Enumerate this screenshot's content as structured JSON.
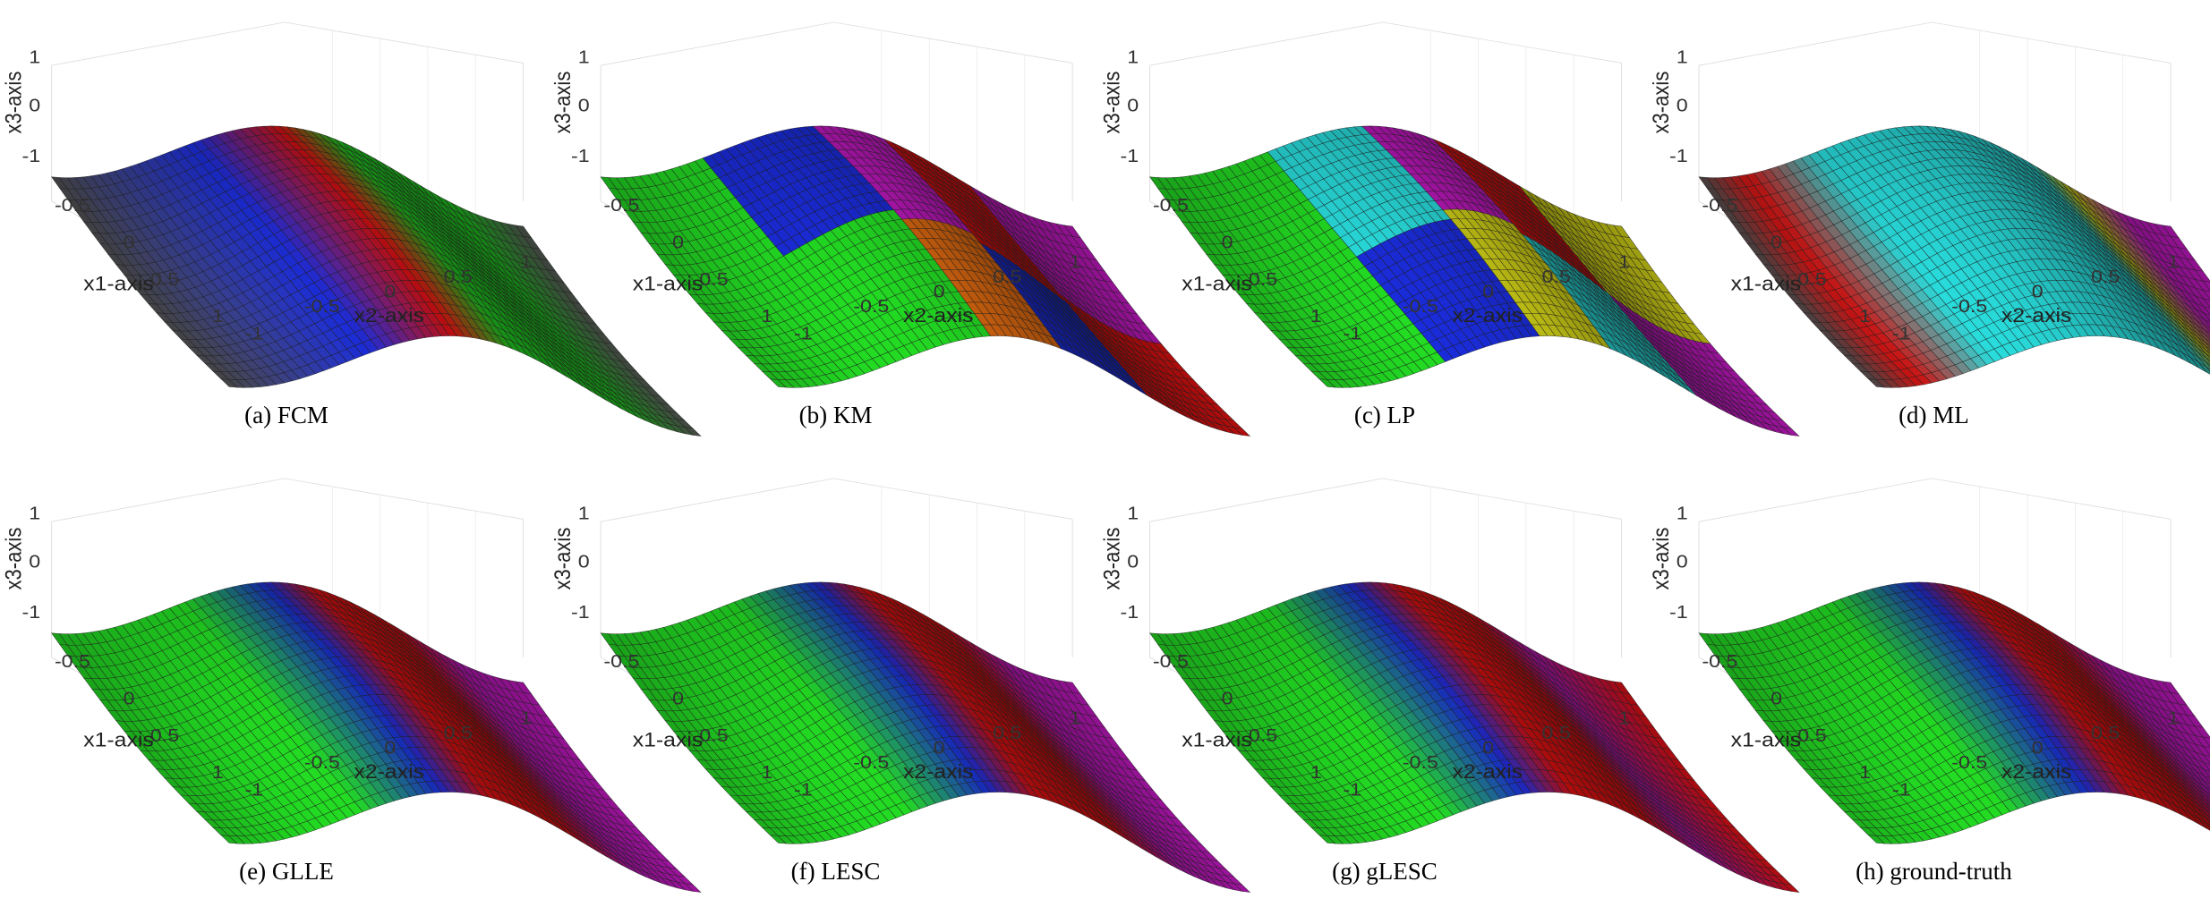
{
  "figure": {
    "panels": [
      {
        "caption": "(a) FCM",
        "scheme": "fcm"
      },
      {
        "caption": "(b) KM",
        "scheme": "km"
      },
      {
        "caption": "(c) LP",
        "scheme": "lp"
      },
      {
        "caption": "(d) ML",
        "scheme": "ml"
      },
      {
        "caption": "(e) GLLE",
        "scheme": "grad"
      },
      {
        "caption": "(f) LESC",
        "scheme": "grad"
      },
      {
        "caption": "(g) gLESC",
        "scheme": "grad2"
      },
      {
        "caption": "(h) ground-truth",
        "scheme": "grad"
      }
    ],
    "axis_labels": {
      "x1": "x1-axis",
      "x2": "x2-axis",
      "x3": "x3-axis"
    },
    "ticks": {
      "x1": [
        "-0.5",
        "0",
        "0.5",
        "1"
      ],
      "x2": [
        "-1",
        "-0.5",
        "0",
        "0.5",
        "1"
      ],
      "x3": [
        "1",
        "0",
        "-1"
      ]
    },
    "colors": {
      "red": "#e01010",
      "green": "#22d822",
      "blue": "#1a2bd6",
      "cyan": "#28d8d8",
      "magenta": "#c418c4",
      "yellow": "#d8d818",
      "dark": "#555555",
      "orange": "#e06a10",
      "mesh": "#1a1a1a"
    }
  },
  "chart_data": {
    "type": "surface",
    "surface": "x3 = sin(pi*x2) * cos(0.5*pi*x1) style wave",
    "x1_range": [
      -1,
      1
    ],
    "x2_range": [
      -1,
      1
    ],
    "x3_range": [
      -1,
      1
    ],
    "grid": true
  }
}
